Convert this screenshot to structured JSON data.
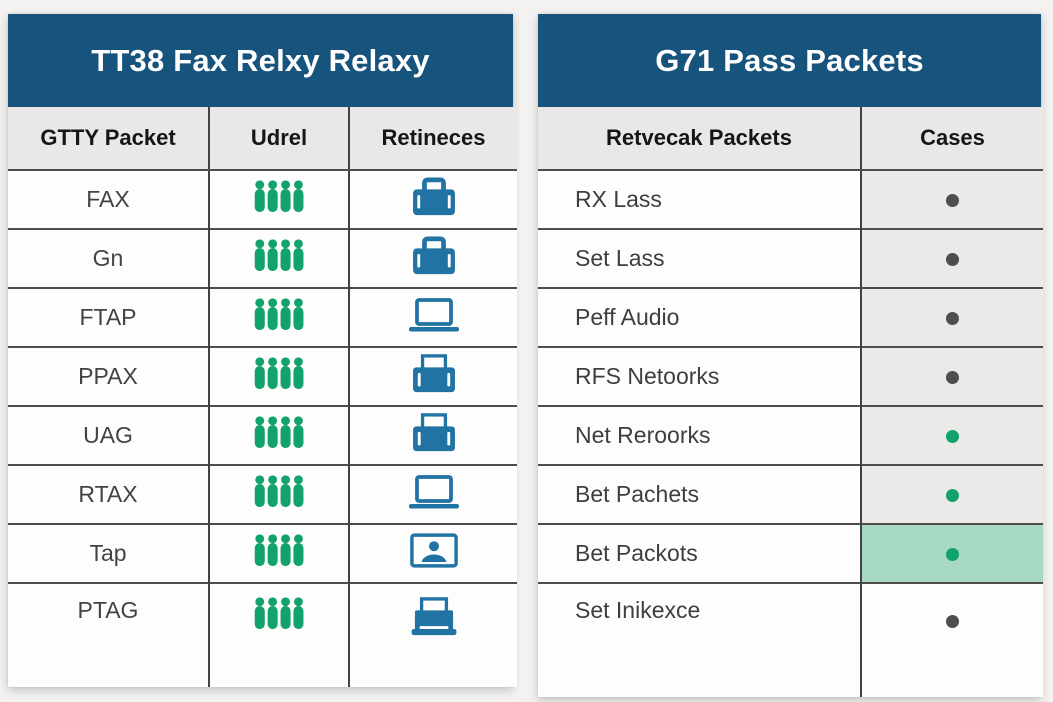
{
  "colors": {
    "title_bar_blue": "#16537d",
    "icon_blue": "#2173a3",
    "icon_green": "#12a26c",
    "dot_gray": "#4e4e4e",
    "case_cell_gray": "#ebeae8",
    "highlight_cell_green": "#a7d9c3",
    "page_background": "#f3f2f0"
  },
  "left_table": {
    "title": "TT38 Fax Relxy Relaxy",
    "columns": [
      "GTTY Packet",
      "Udrel",
      "Retineces"
    ],
    "rows": [
      {
        "label": "FAX",
        "udrel_icon": "people-group-icon",
        "device_icon": "fax-machine-icon"
      },
      {
        "label": "Gn",
        "udrel_icon": "people-group-icon",
        "device_icon": "fax-machine-icon"
      },
      {
        "label": "FTAP",
        "udrel_icon": "people-group-icon",
        "device_icon": "laptop-icon"
      },
      {
        "label": "PPAX",
        "udrel_icon": "people-group-icon",
        "device_icon": "printer-icon"
      },
      {
        "label": "UAG",
        "udrel_icon": "people-group-icon",
        "device_icon": "printer-icon"
      },
      {
        "label": "RTAX",
        "udrel_icon": "people-group-icon",
        "device_icon": "laptop-icon"
      },
      {
        "label": "Tap",
        "udrel_icon": "people-group-icon",
        "device_icon": "photo-id-icon"
      },
      {
        "label": "PTAG",
        "udrel_icon": "people-group-icon",
        "device_icon": "printer-tray-icon"
      }
    ]
  },
  "right_table": {
    "title": "G71 Pass Packets",
    "columns": [
      "Retvecak Packets",
      "Cases"
    ],
    "rows": [
      {
        "label": "RX Lass",
        "dot": "gray",
        "cell_bg": "gray"
      },
      {
        "label": "Set Lass",
        "dot": "gray",
        "cell_bg": "gray"
      },
      {
        "label": "Peff Audio",
        "dot": "gray",
        "cell_bg": "gray"
      },
      {
        "label": "RFS Netoorks",
        "dot": "gray",
        "cell_bg": "gray"
      },
      {
        "label": "Net Reroorks",
        "dot": "green",
        "cell_bg": "gray"
      },
      {
        "label": "Bet Pachets",
        "dot": "green",
        "cell_bg": "gray"
      },
      {
        "label": "Bet Packots",
        "dot": "green",
        "cell_bg": "green"
      },
      {
        "label": "Set Inikexce",
        "dot": "gray",
        "cell_bg": "white"
      }
    ]
  }
}
